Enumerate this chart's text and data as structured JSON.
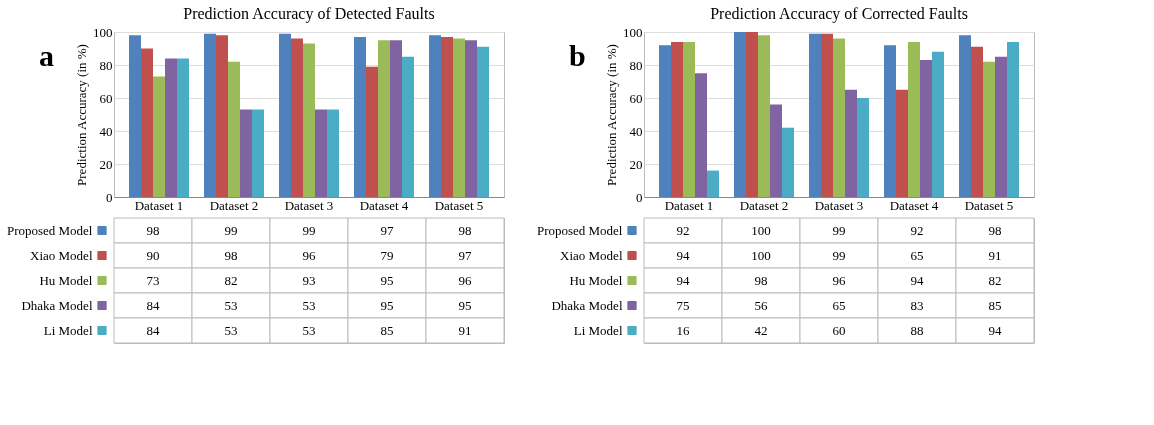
{
  "chart_data": [
    {
      "type": "bar",
      "title": "Prediction Accuracy of Detected Faults",
      "ylabel": "Prediction Accuracy (in %)",
      "annotations": [
        "a"
      ],
      "categories": [
        "Dataset 1",
        "Dataset 2",
        "Dataset 3",
        "Dataset 4",
        "Dataset 5"
      ],
      "series": [
        {
          "name": "Proposed Model",
          "color": "#4f81bd",
          "values": [
            98,
            99,
            99,
            97,
            98
          ]
        },
        {
          "name": "Xiao Model",
          "color": "#c0504d",
          "values": [
            90,
            98,
            96,
            79,
            97
          ]
        },
        {
          "name": "Hu Model",
          "color": "#9bbb59",
          "values": [
            73,
            82,
            93,
            95,
            96
          ]
        },
        {
          "name": "Dhaka Model",
          "color": "#8064a2",
          "values": [
            84,
            53,
            53,
            95,
            95
          ]
        },
        {
          "name": "Li Model",
          "color": "#4bacc6",
          "values": [
            84,
            53,
            53,
            85,
            91
          ]
        }
      ],
      "ylim": [
        0,
        100
      ],
      "yticks": [
        0,
        20,
        40,
        60,
        80,
        100
      ],
      "grid": "y",
      "data_labels": true,
      "legend": "bottom"
    },
    {
      "type": "bar",
      "title": "Prediction Accuracy of Corrected Faults",
      "ylabel": "Prediction Accuracy (in %)",
      "annotations": [
        "b"
      ],
      "categories": [
        "Dataset 1",
        "Dataset 2",
        "Dataset 3",
        "Dataset 4",
        "Dataset 5"
      ],
      "series": [
        {
          "name": "Proposed Model",
          "color": "#4f81bd",
          "values": [
            92,
            100,
            99,
            92,
            98
          ]
        },
        {
          "name": "Xiao Model",
          "color": "#c0504d",
          "values": [
            94,
            100,
            99,
            65,
            91
          ]
        },
        {
          "name": "Hu Model",
          "color": "#9bbb59",
          "values": [
            94,
            98,
            96,
            94,
            82
          ]
        },
        {
          "name": "Dhaka Model",
          "color": "#8064a2",
          "values": [
            75,
            56,
            65,
            83,
            85
          ]
        },
        {
          "name": "Li Model",
          "color": "#4bacc6",
          "values": [
            16,
            42,
            60,
            88,
            94
          ]
        }
      ],
      "ylim": [
        0,
        100
      ],
      "yticks": [
        0,
        20,
        40,
        60,
        80,
        100
      ],
      "grid": "y",
      "data_labels": true,
      "legend": "bottom"
    }
  ]
}
